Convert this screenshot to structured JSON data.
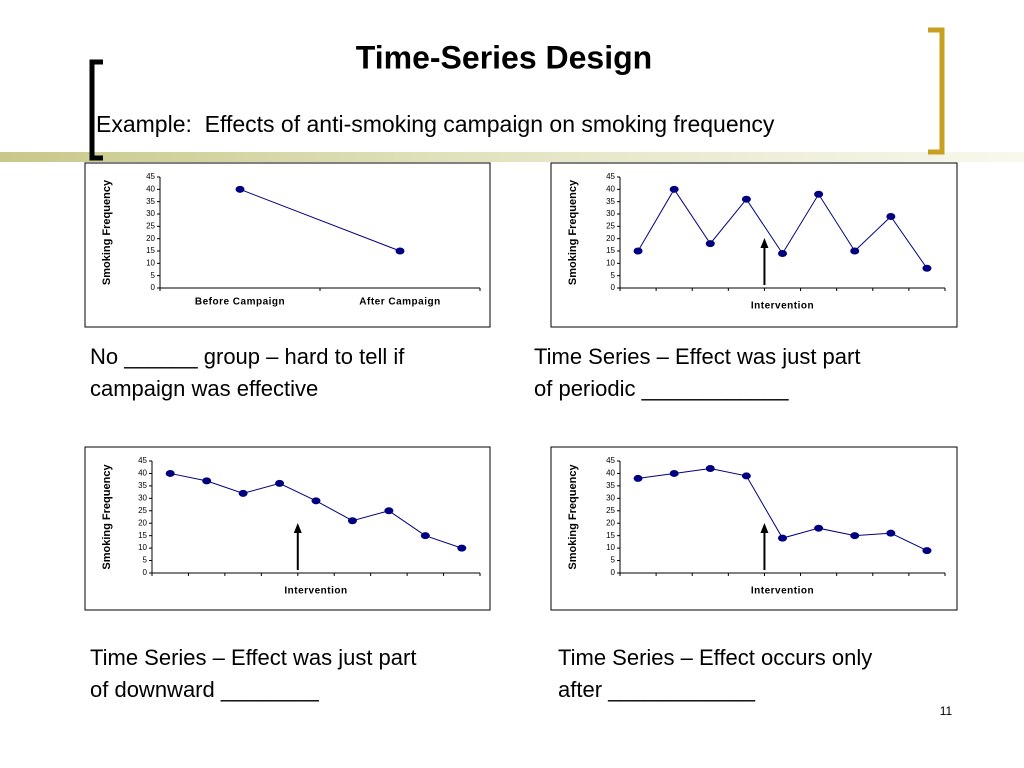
{
  "title": "Time-Series Design",
  "subtitle": "Example:  Effects of anti-smoking campaign on smoking frequency",
  "page_number": "11",
  "chart_data": [
    {
      "type": "line",
      "y_label": "Smoking Frequency",
      "categories": [
        "Before Campaign",
        "After Campaign"
      ],
      "values": [
        40,
        15
      ],
      "color": "#000080",
      "ylim": [
        0,
        45
      ],
      "yticks": [
        0,
        5,
        10,
        15,
        20,
        25,
        30,
        35,
        40,
        45
      ],
      "caption": [
        "No ______ group – hard to tell if",
        "campaign was effective"
      ]
    },
    {
      "type": "line",
      "y_label": "Smoking Frequency",
      "x_label": "Intervention",
      "categories": [
        null,
        null,
        null,
        null,
        null,
        null,
        null,
        null,
        null
      ],
      "values": [
        15,
        40,
        18,
        36,
        14,
        38,
        15,
        29,
        8
      ],
      "color": "#000080",
      "ylim": [
        0,
        45
      ],
      "yticks": [
        0,
        5,
        10,
        15,
        20,
        25,
        30,
        35,
        40,
        45
      ],
      "caption": [
        "Time Series – Effect was just part",
        "of periodic ____________"
      ]
    },
    {
      "type": "line",
      "y_label": "Smoking Frequency",
      "x_label": "Intervention",
      "categories": [
        null,
        null,
        null,
        null,
        null,
        null,
        null,
        null,
        null
      ],
      "values": [
        40,
        37,
        32,
        36,
        29,
        21,
        25,
        15,
        10
      ],
      "color": "#000080",
      "ylim": [
        0,
        45
      ],
      "yticks": [
        0,
        5,
        10,
        15,
        20,
        25,
        30,
        35,
        40,
        45
      ],
      "caption": [
        "Time Series – Effect was just part",
        "of downward ________"
      ]
    },
    {
      "type": "line",
      "y_label": "Smoking Frequency",
      "x_label": "Intervention",
      "categories": [
        null,
        null,
        null,
        null,
        null,
        null,
        null,
        null,
        null
      ],
      "values": [
        38,
        40,
        42,
        39,
        14,
        18,
        15,
        16,
        9
      ],
      "color": "#000080",
      "ylim": [
        0,
        45
      ],
      "yticks": [
        0,
        5,
        10,
        15,
        20,
        25,
        30,
        35,
        40,
        45
      ],
      "caption": [
        "Time Series – Effect occurs only",
        "after ____________"
      ]
    }
  ]
}
